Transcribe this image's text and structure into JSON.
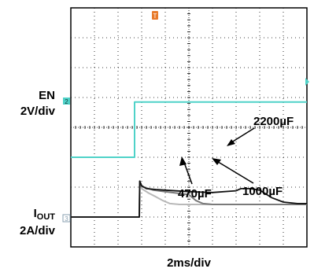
{
  "chart_data": {
    "type": "line",
    "title": "",
    "xlabel": "2ms/div",
    "grid": true,
    "divisions": {
      "x": 10,
      "y": 8
    },
    "x_units": "div",
    "colors": {
      "en_trace": "#4fd2c8",
      "iout_2200": "#111111",
      "iout_1000": "#7a7a7a",
      "iout_470": "#b9b9b9",
      "trigger_marker": "#e87a2a",
      "ch2_marker": "#4fd2c8",
      "ch3_marker": "#8aa0b0"
    },
    "channels": [
      {
        "name": "EN",
        "scale": "2V/div",
        "marker_label": "2",
        "x": [
          0,
          2.7,
          2.7,
          10
        ],
        "y": [
          -1.0,
          -1.0,
          0.85,
          0.85
        ]
      },
      {
        "name": "I",
        "name_sub": "OUT",
        "scale": "2A/div",
        "marker_label": "3",
        "series": [
          {
            "name": "2200µF",
            "x": [
              0,
              2.9,
              2.92,
              3.0,
              3.2,
              3.6,
              4.0,
              5.0,
              6.0,
              7.0,
              7.2,
              7.6,
              8.0,
              8.5,
              9.0,
              9.6,
              10
            ],
            "y": [
              -3.0,
              -3.0,
              -1.8,
              -1.95,
              -2.05,
              -2.08,
              -2.1,
              -2.15,
              -2.18,
              -2.12,
              -2.05,
              -2.05,
              -2.1,
              -2.35,
              -2.5,
              -2.55,
              -2.55
            ]
          },
          {
            "name": "1000µF",
            "x": [
              0,
              2.9,
              2.92,
              3.0,
              3.5,
              4.0,
              4.5,
              5.0,
              5.3,
              5.6,
              6.0,
              7.0,
              8.0,
              9.0,
              10
            ],
            "y": [
              -3.0,
              -3.0,
              -1.8,
              -1.98,
              -2.1,
              -2.15,
              -2.2,
              -2.25,
              -2.45,
              -2.55,
              -2.58,
              -2.58,
              -2.58,
              -2.58,
              -2.58
            ]
          },
          {
            "name": "470µF",
            "x": [
              0,
              2.9,
              2.92,
              3.0,
              3.3,
              3.6,
              3.9,
              4.2,
              4.6,
              5.0,
              6.0,
              8.0,
              10
            ],
            "y": [
              -3.0,
              -3.0,
              -1.8,
              -2.05,
              -2.2,
              -2.32,
              -2.45,
              -2.55,
              -2.58,
              -2.58,
              -2.58,
              -2.58,
              -2.58
            ]
          }
        ]
      }
    ],
    "annotations": [
      "2200µF",
      "1000µF",
      "470µF"
    ]
  }
}
